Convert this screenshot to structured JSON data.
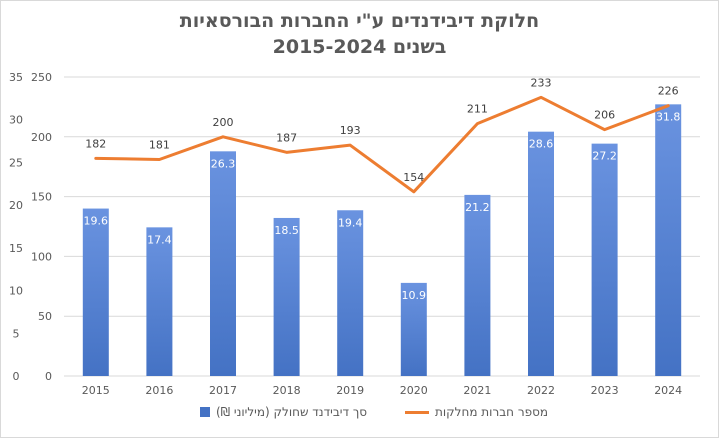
{
  "chart_data": {
    "type": "bar+line",
    "title_line1": "חלוקת דיבידנדים ע\"י החברות הבורסאיות",
    "title_line2": "בשנים 2015-2024",
    "categories": [
      "2015",
      "2016",
      "2017",
      "2018",
      "2019",
      "2020",
      "2021",
      "2022",
      "2023",
      "2024"
    ],
    "series": [
      {
        "name": "סך דיבידנד שחולק (מיליוני ₪)",
        "kind": "bar",
        "axis": "left",
        "values": [
          19.6,
          17.4,
          26.3,
          18.5,
          19.4,
          10.9,
          21.2,
          28.6,
          27.2,
          31.8
        ],
        "color": "#4472c4"
      },
      {
        "name": "מספר חברות מחלקות",
        "kind": "line",
        "axis": "right",
        "values": [
          182,
          181,
          200,
          187,
          193,
          154,
          211,
          233,
          206,
          226
        ],
        "color": "#ed7d31"
      }
    ],
    "y_left": {
      "min": 0,
      "max": 35,
      "ticks": [
        "0",
        "5",
        "10",
        "15",
        "20",
        "25",
        "30",
        "35"
      ]
    },
    "y_right": {
      "min": 0,
      "max": 250,
      "ticks": [
        "0",
        "50",
        "100",
        "150",
        "200",
        "250"
      ]
    },
    "grid": true,
    "legend_position": "bottom"
  }
}
